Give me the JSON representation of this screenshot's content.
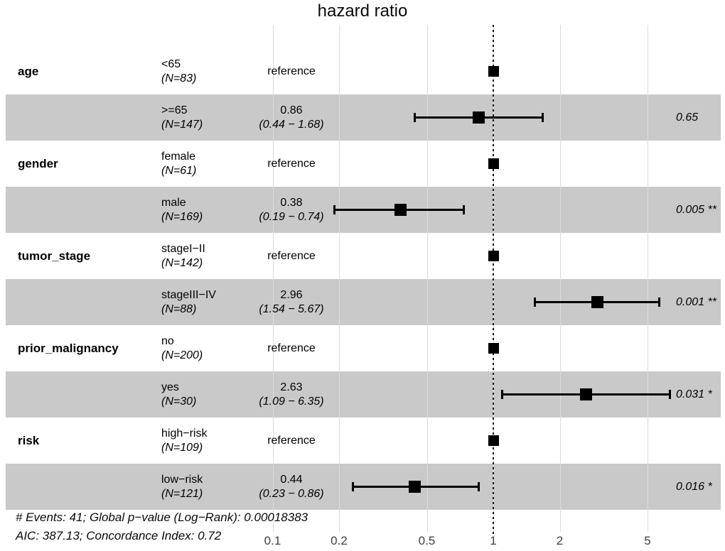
{
  "title": "hazard ratio",
  "chart_data": {
    "type": "forest",
    "title": "hazard ratio",
    "x_axis": {
      "scale": "log10",
      "ticks": [
        0.1,
        0.2,
        0.5,
        1,
        2,
        5
      ],
      "reference_line": 1,
      "range": [
        0.09,
        8.5
      ]
    },
    "legend": "none",
    "grid": "vertical-only",
    "rows": [
      {
        "variable": "age",
        "level": "<65",
        "n_label": "(N=83)",
        "estimate_label": "reference",
        "reference": true,
        "shaded": false
      },
      {
        "level": ">=65",
        "n_label": "(N=147)",
        "estimate": 0.86,
        "ci_low": 0.44,
        "ci_high": 1.68,
        "estimate_label": "0.86",
        "ci_label": "(0.44 − 1.68)",
        "p_label": "0.65",
        "shaded": true
      },
      {
        "variable": "gender",
        "level": "female",
        "n_label": "(N=61)",
        "estimate_label": "reference",
        "reference": true,
        "shaded": false
      },
      {
        "level": "male",
        "n_label": "(N=169)",
        "estimate": 0.38,
        "ci_low": 0.19,
        "ci_high": 0.74,
        "estimate_label": "0.38",
        "ci_label": "(0.19 − 0.74)",
        "p_label": "0.005 **",
        "shaded": true
      },
      {
        "variable": "tumor_stage",
        "level": "stageI−II",
        "n_label": "(N=142)",
        "estimate_label": "reference",
        "reference": true,
        "shaded": false
      },
      {
        "level": "stageIII−IV",
        "n_label": "(N=88)",
        "estimate": 2.96,
        "ci_low": 1.54,
        "ci_high": 5.67,
        "estimate_label": "2.96",
        "ci_label": "(1.54 − 5.67)",
        "p_label": "0.001 **",
        "shaded": true
      },
      {
        "variable": "prior_malignancy",
        "level": "no",
        "n_label": "(N=200)",
        "estimate_label": "reference",
        "reference": true,
        "shaded": false
      },
      {
        "level": "yes",
        "n_label": "(N=30)",
        "estimate": 2.63,
        "ci_low": 1.09,
        "ci_high": 6.35,
        "estimate_label": "2.63",
        "ci_label": "(1.09 − 6.35)",
        "p_label": "0.031 *",
        "shaded": true
      },
      {
        "variable": "risk",
        "level": "high−risk",
        "n_label": "(N=109)",
        "estimate_label": "reference",
        "reference": true,
        "shaded": false
      },
      {
        "level": "low−risk",
        "n_label": "(N=121)",
        "estimate": 0.44,
        "ci_low": 0.23,
        "ci_high": 0.86,
        "estimate_label": "0.44",
        "ci_label": "(0.23 − 0.86)",
        "p_label": "0.016 *",
        "shaded": true
      }
    ],
    "footnotes": [
      "# Events: 41; Global p−value (Log−Rank): 0.00018383",
      "AIC: 387.13; Concordance Index: 0.72"
    ],
    "colors": {
      "stripe": "#c9c9c9",
      "gridline": "#dcdcdc",
      "marker": "#000000",
      "tick_text": "#404040"
    }
  }
}
